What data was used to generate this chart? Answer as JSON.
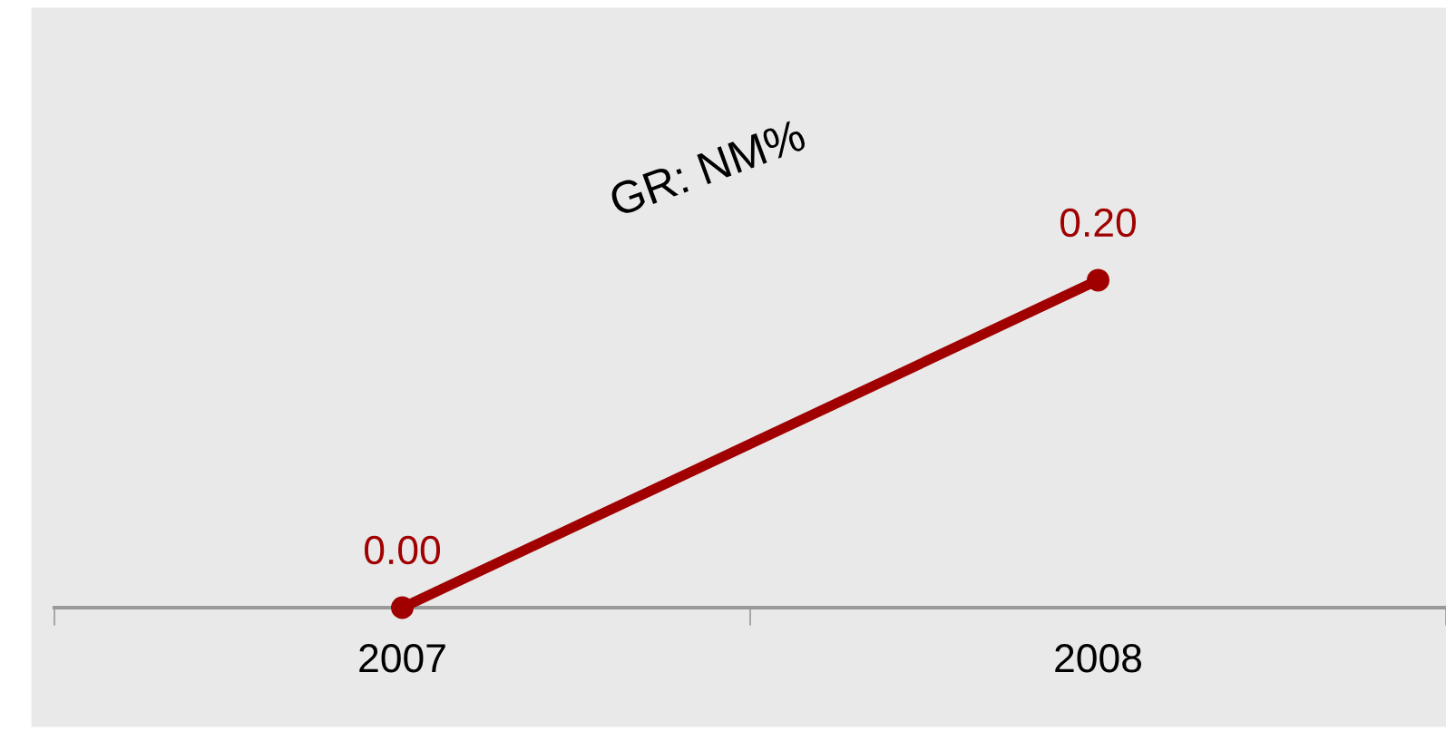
{
  "chart_data": {
    "type": "line",
    "categories": [
      "2007",
      "2008"
    ],
    "series": [
      {
        "color": "#a00000",
        "values": [
          0.0,
          0.2
        ],
        "value_labels": [
          "0.00",
          "0.20"
        ]
      }
    ],
    "marker": "circle",
    "line_style": "solid",
    "grid": false,
    "legend": false,
    "tick_labels": "x",
    "annotations": [
      "GR: NM%"
    ]
  }
}
